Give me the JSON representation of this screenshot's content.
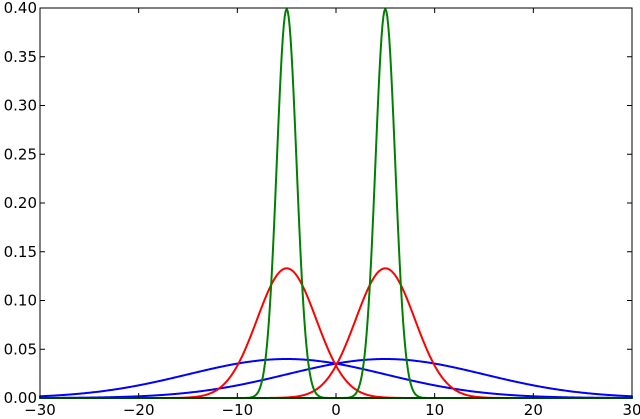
{
  "chart_data": {
    "type": "line",
    "title": "",
    "xlabel": "",
    "ylabel": "",
    "xlim": [
      -30,
      30
    ],
    "ylim": [
      0,
      0.4
    ],
    "grid": false,
    "legend": "none",
    "x_ticks": [
      -30,
      -20,
      -10,
      0,
      10,
      20,
      30
    ],
    "x_tick_labels": [
      "−30",
      "−20",
      "−10",
      "0",
      "10",
      "20",
      "30"
    ],
    "y_ticks": [
      0,
      0.05,
      0.1,
      0.15,
      0.2,
      0.25,
      0.3,
      0.35,
      0.4
    ],
    "y_tick_labels": [
      "0.00",
      "0.05",
      "0.10",
      "0.15",
      "0.20",
      "0.25",
      "0.30",
      "0.35",
      "0.40"
    ],
    "series": [
      {
        "color": "#0000ff",
        "mean": -5,
        "std": 10,
        "peak": 0.04
      },
      {
        "color": "#0000ff",
        "mean": 5,
        "std": 10,
        "peak": 0.04
      },
      {
        "color": "#ff0000",
        "mean": -5,
        "std": 3,
        "peak": 0.133
      },
      {
        "color": "#ff0000",
        "mean": 5,
        "std": 3,
        "peak": 0.133
      },
      {
        "color": "#008000",
        "mean": -5,
        "std": 1,
        "peak": 0.399
      },
      {
        "color": "#008000",
        "mean": 5,
        "std": 1,
        "peak": 0.399
      }
    ]
  }
}
